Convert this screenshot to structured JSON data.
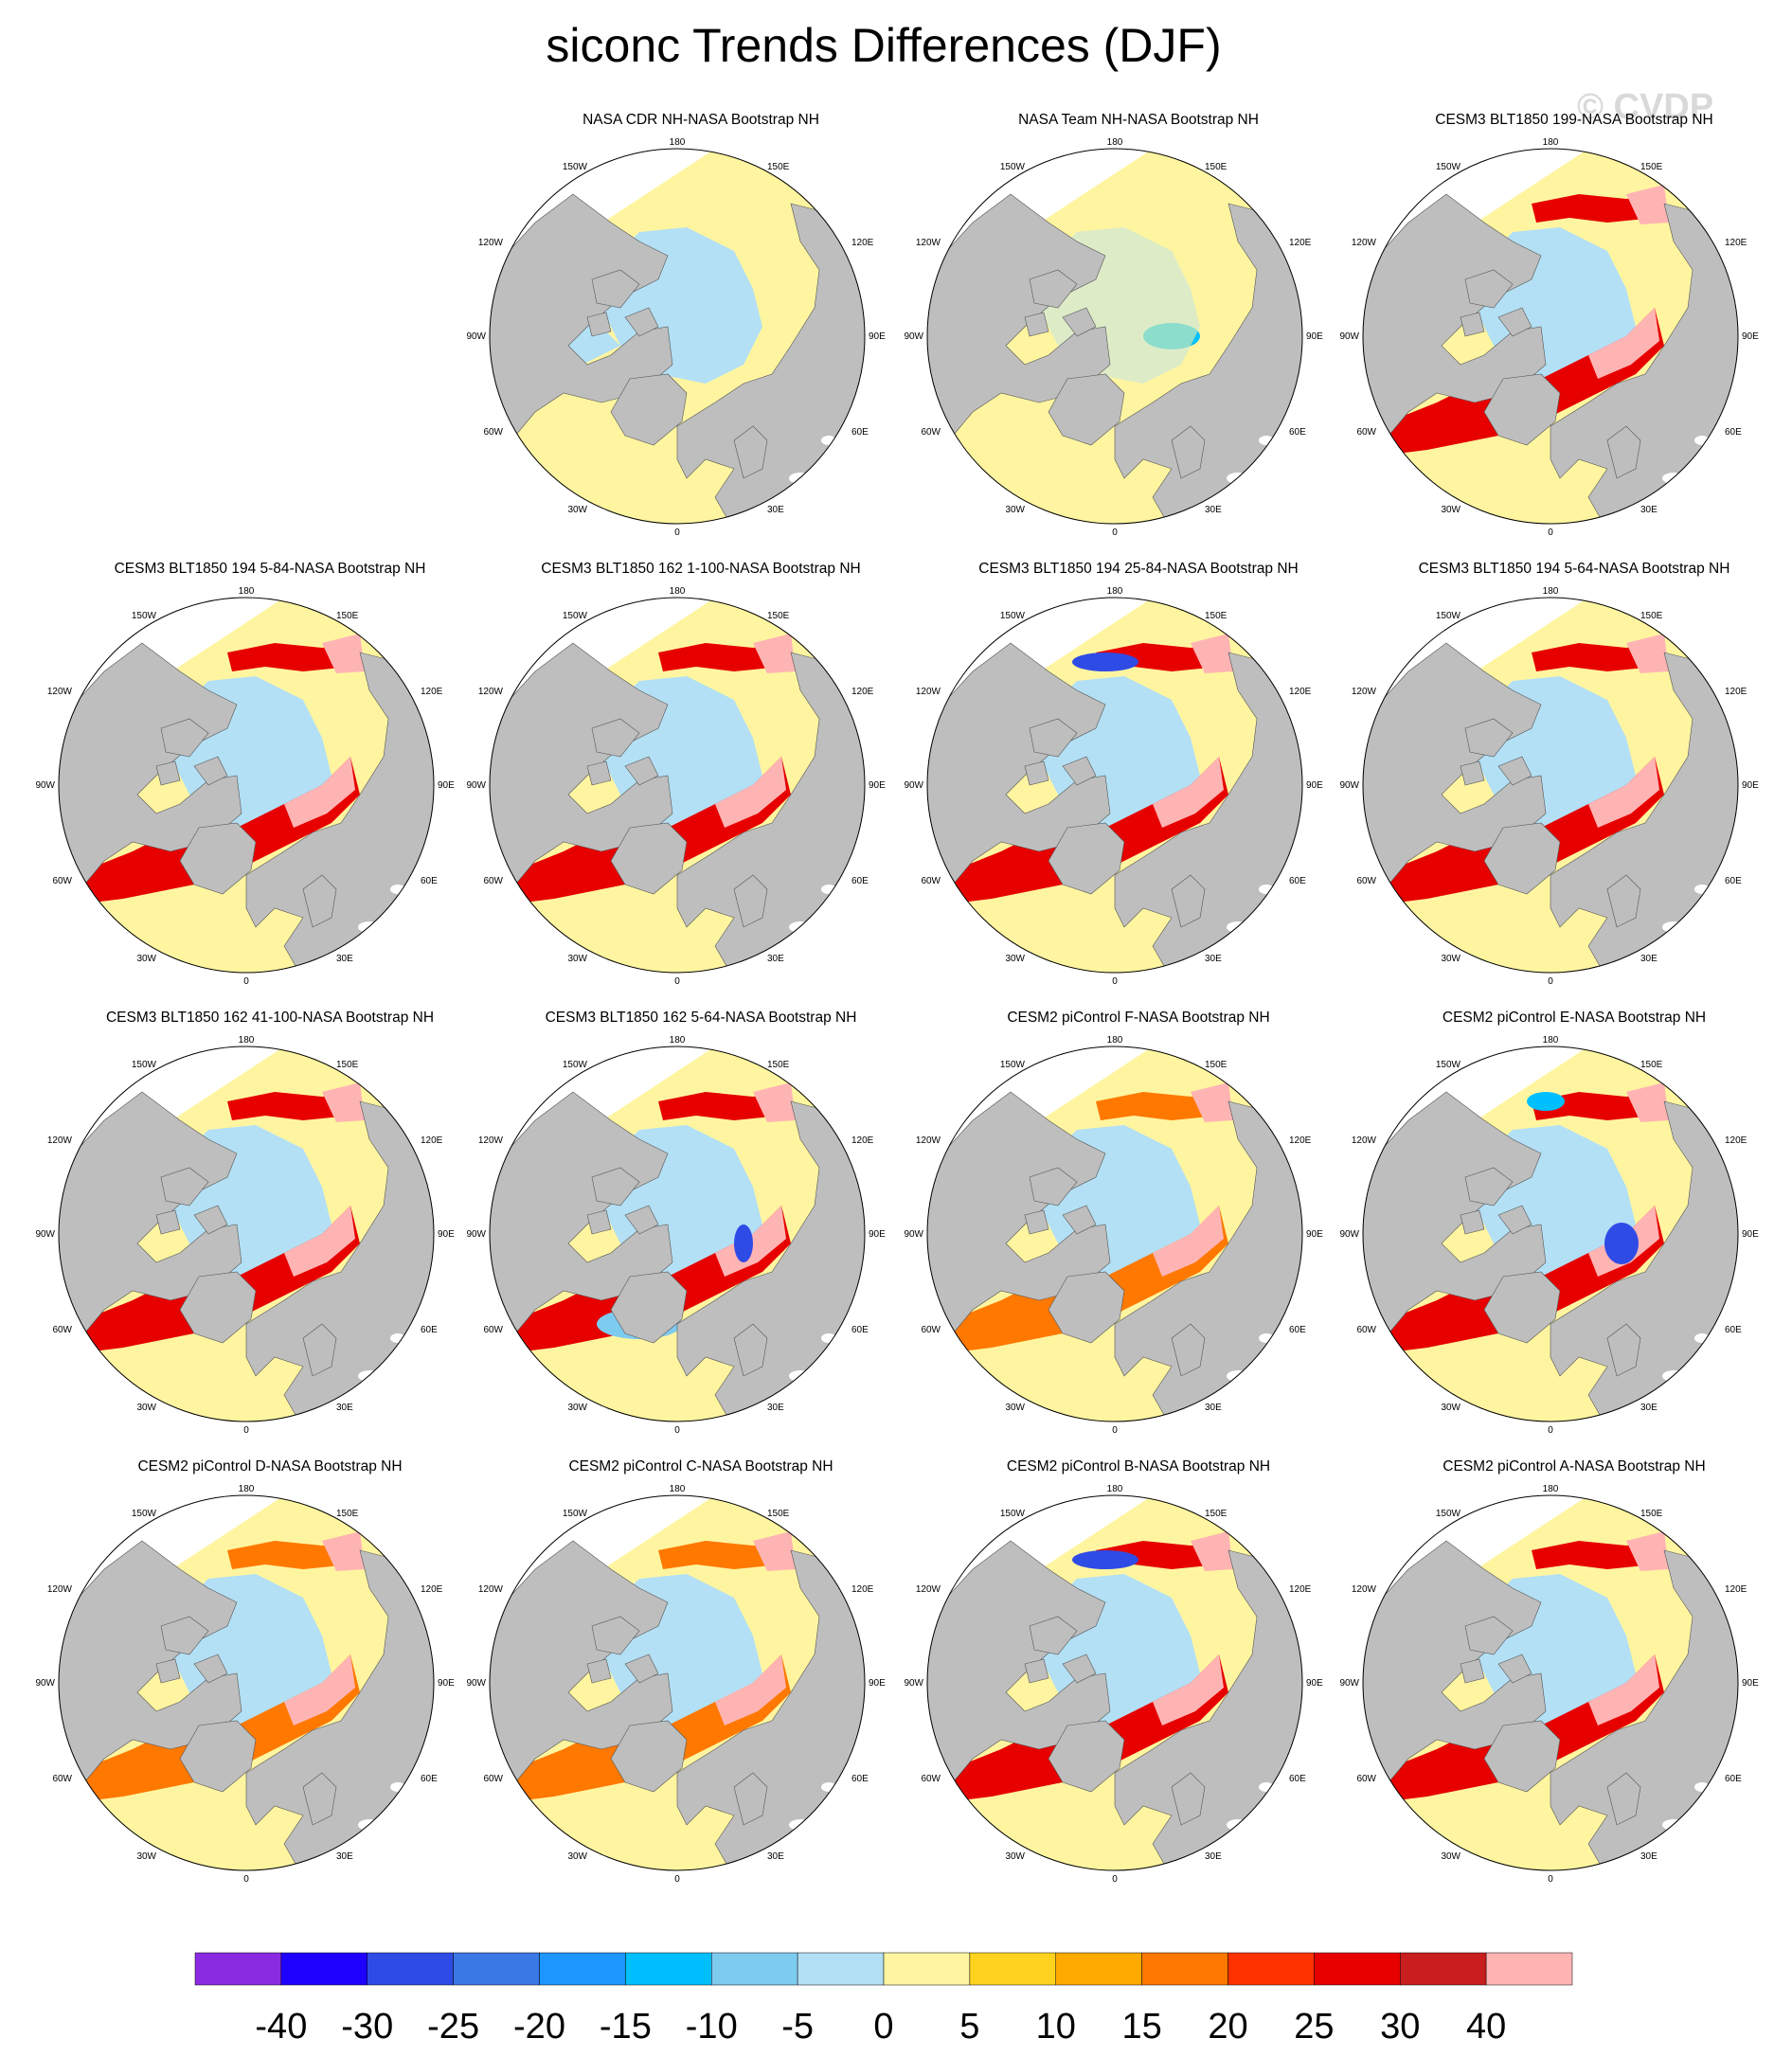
{
  "title": "siconc Trends Differences (DJF)",
  "watermark": "© CVDP",
  "panels": [
    {
      "title": "",
      "empty": true
    },
    {
      "title": "NASA CDR NH-NASA Bootstrap NH",
      "pattern": "cdr"
    },
    {
      "title": "NASA Team NH-NASA Bootstrap NH",
      "pattern": "team"
    },
    {
      "title": "CESM3 BLT1850 199-NASA Bootstrap NH",
      "pattern": "model"
    },
    {
      "title": "CESM3 BLT1850 194 5-84-NASA Bootstrap NH",
      "pattern": "model"
    },
    {
      "title": "CESM3 BLT1850 162 1-100-NASA Bootstrap NH",
      "pattern": "model"
    },
    {
      "title": "CESM3 BLT1850 194 25-84-NASA Bootstrap NH",
      "pattern": "model_blue_pacific"
    },
    {
      "title": "CESM3 BLT1850 194 5-64-NASA Bootstrap NH",
      "pattern": "model"
    },
    {
      "title": "CESM3 BLT1850 162 41-100-NASA Bootstrap NH",
      "pattern": "model"
    },
    {
      "title": "CESM3 BLT1850 162 5-64-NASA Bootstrap NH",
      "pattern": "model_blue_atlantic"
    },
    {
      "title": "CESM2 piControl F-NASA Bootstrap NH",
      "pattern": "model_light"
    },
    {
      "title": "CESM2 piControl E-NASA Bootstrap NH",
      "pattern": "model_blue_barents"
    },
    {
      "title": "CESM2 piControl D-NASA Bootstrap NH",
      "pattern": "model_light"
    },
    {
      "title": "CESM2 piControl C-NASA Bootstrap NH",
      "pattern": "model_light"
    },
    {
      "title": "CESM2 piControl B-NASA Bootstrap NH",
      "pattern": "model_blue_pacific"
    },
    {
      "title": "CESM2 piControl A-NASA Bootstrap NH",
      "pattern": "model"
    }
  ],
  "map_labels": {
    "top": "180",
    "bottom": "0",
    "upper_left": "150W",
    "upper_right": "150E",
    "left_upper": "120W",
    "right_upper": "120E",
    "left_mid": "90W",
    "right_mid": "90E",
    "left_lower": "60W",
    "right_lower": "60E",
    "lower_left": "30W",
    "lower_right": "30E"
  },
  "colorbar": {
    "colors": [
      "#8a2be2",
      "#1e00ff",
      "#2f4be6",
      "#3a78e6",
      "#1e96ff",
      "#00bfff",
      "#7ecbf0",
      "#b3e0f5",
      "#fff5a0",
      "#ffd21e",
      "#ffaa00",
      "#ff7800",
      "#ff3200",
      "#e60000",
      "#c81e1e",
      "#ffb4b4"
    ],
    "labels": [
      "-40",
      "-30",
      "-25",
      "-20",
      "-15",
      "-10",
      "-5",
      "0",
      "5",
      "10",
      "15",
      "20",
      "25",
      "30",
      "40"
    ]
  },
  "theme": {
    "land": "#bebebe",
    "ocean_fill": "#fff5a0",
    "frame": "#000000"
  }
}
